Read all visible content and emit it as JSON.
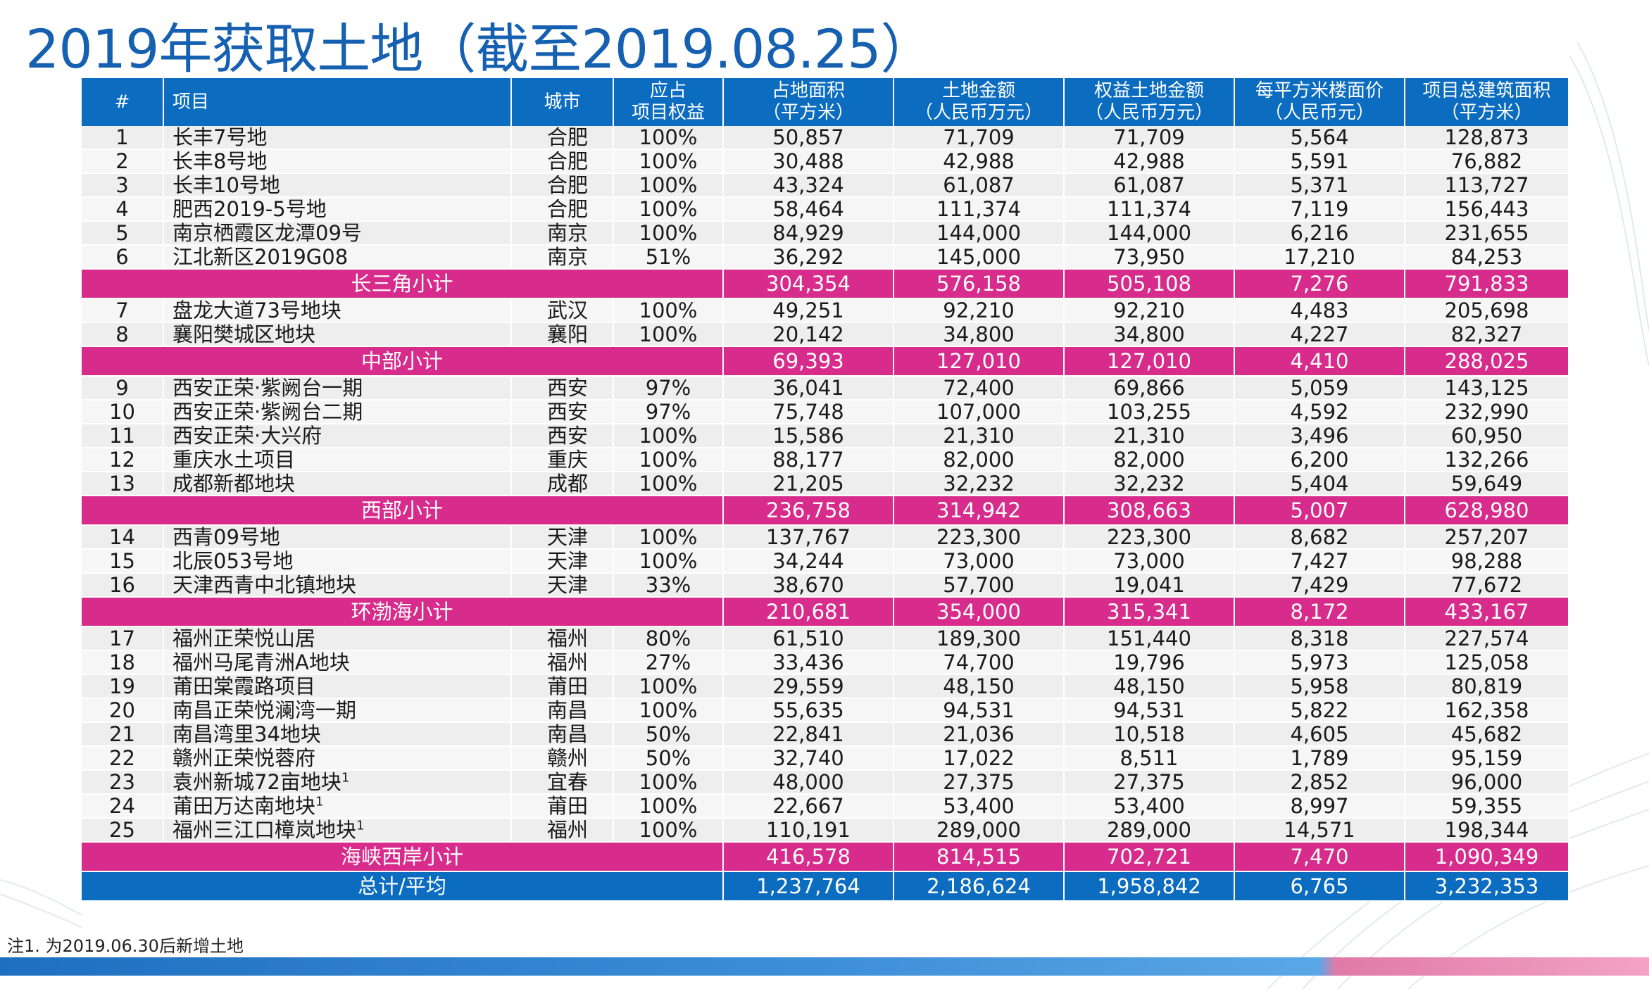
{
  "title": "2019年获取土地（截至2019.08.25）",
  "columns": {
    "num": "#",
    "project": "项目",
    "city": "城市",
    "equity_l1": "应占",
    "equity_l2": "项目权益",
    "area_l1": "占地面积",
    "area_l2": "（平方米）",
    "price_l1": "土地金额",
    "price_l2": "（人民币万元）",
    "eq_price_l1": "权益土地金额",
    "eq_price_l2": "（人民币万元）",
    "unit_l1": "每平方米楼面价",
    "unit_l2": "（人民币元）",
    "gfa_l1": "项目总建筑面积",
    "gfa_l2": "（平方米）"
  },
  "groups": [
    {
      "rows": [
        {
          "n": "1",
          "name": "长丰7号地",
          "sup": "",
          "city": "合肥",
          "eq": "100%",
          "area": "50,857",
          "price": "71,709",
          "eqp": "71,709",
          "unit": "5,564",
          "gfa": "128,873"
        },
        {
          "n": "2",
          "name": "长丰8号地",
          "sup": "",
          "city": "合肥",
          "eq": "100%",
          "area": "30,488",
          "price": "42,988",
          "eqp": "42,988",
          "unit": "5,591",
          "gfa": "76,882"
        },
        {
          "n": "3",
          "name": "长丰10号地",
          "sup": "",
          "city": "合肥",
          "eq": "100%",
          "area": "43,324",
          "price": "61,087",
          "eqp": "61,087",
          "unit": "5,371",
          "gfa": "113,727"
        },
        {
          "n": "4",
          "name": "肥西2019-5号地",
          "sup": "",
          "city": "合肥",
          "eq": "100%",
          "area": "58,464",
          "price": "111,374",
          "eqp": "111,374",
          "unit": "7,119",
          "gfa": "156,443"
        },
        {
          "n": "5",
          "name": "南京栖霞区龙潭09号",
          "sup": "",
          "city": "南京",
          "eq": "100%",
          "area": "84,929",
          "price": "144,000",
          "eqp": "144,000",
          "unit": "6,216",
          "gfa": "231,655"
        },
        {
          "n": "6",
          "name": "江北新区2019G08",
          "sup": "",
          "city": "南京",
          "eq": "51%",
          "area": "36,292",
          "price": "145,000",
          "eqp": "73,950",
          "unit": "17,210",
          "gfa": "84,253"
        }
      ],
      "subtotal": {
        "label": "长三角小计",
        "area": "304,354",
        "price": "576,158",
        "eqp": "505,108",
        "unit": "7,276",
        "gfa": "791,833"
      }
    },
    {
      "rows": [
        {
          "n": "7",
          "name": "盘龙大道73号地块",
          "sup": "",
          "city": "武汉",
          "eq": "100%",
          "area": "49,251",
          "price": "92,210",
          "eqp": "92,210",
          "unit": "4,483",
          "gfa": "205,698"
        },
        {
          "n": "8",
          "name": "襄阳樊城区地块",
          "sup": "",
          "city": "襄阳",
          "eq": "100%",
          "area": "20,142",
          "price": "34,800",
          "eqp": "34,800",
          "unit": "4,227",
          "gfa": "82,327"
        }
      ],
      "subtotal": {
        "label": "中部小计",
        "area": "69,393",
        "price": "127,010",
        "eqp": "127,010",
        "unit": "4,410",
        "gfa": "288,025"
      }
    },
    {
      "rows": [
        {
          "n": "9",
          "name": "西安正荣·紫阙台一期",
          "sup": "",
          "city": "西安",
          "eq": "97%",
          "area": "36,041",
          "price": "72,400",
          "eqp": "69,866",
          "unit": "5,059",
          "gfa": "143,125"
        },
        {
          "n": "10",
          "name": "西安正荣·紫阙台二期",
          "sup": "",
          "city": "西安",
          "eq": "97%",
          "area": "75,748",
          "price": "107,000",
          "eqp": "103,255",
          "unit": "4,592",
          "gfa": "232,990"
        },
        {
          "n": "11",
          "name": "西安正荣·大兴府",
          "sup": "",
          "city": "西安",
          "eq": "100%",
          "area": "15,586",
          "price": "21,310",
          "eqp": "21,310",
          "unit": "3,496",
          "gfa": "60,950"
        },
        {
          "n": "12",
          "name": "重庆水土项目",
          "sup": "",
          "city": "重庆",
          "eq": "100%",
          "area": "88,177",
          "price": "82,000",
          "eqp": "82,000",
          "unit": "6,200",
          "gfa": "132,266"
        },
        {
          "n": "13",
          "name": "成都新都地块",
          "sup": "",
          "city": "成都",
          "eq": "100%",
          "area": "21,205",
          "price": "32,232",
          "eqp": "32,232",
          "unit": "5,404",
          "gfa": "59,649"
        }
      ],
      "subtotal": {
        "label": "西部小计",
        "area": "236,758",
        "price": "314,942",
        "eqp": "308,663",
        "unit": "5,007",
        "gfa": "628,980"
      }
    },
    {
      "rows": [
        {
          "n": "14",
          "name": "西青09号地",
          "sup": "",
          "city": "天津",
          "eq": "100%",
          "area": "137,767",
          "price": "223,300",
          "eqp": "223,300",
          "unit": "8,682",
          "gfa": "257,207"
        },
        {
          "n": "15",
          "name": "北辰053号地",
          "sup": "",
          "city": "天津",
          "eq": "100%",
          "area": "34,244",
          "price": "73,000",
          "eqp": "73,000",
          "unit": "7,427",
          "gfa": "98,288"
        },
        {
          "n": "16",
          "name": "天津西青中北镇地块",
          "sup": "",
          "city": "天津",
          "eq": "33%",
          "area": "38,670",
          "price": "57,700",
          "eqp": "19,041",
          "unit": "7,429",
          "gfa": "77,672"
        }
      ],
      "subtotal": {
        "label": "环渤海小计",
        "area": "210,681",
        "price": "354,000",
        "eqp": "315,341",
        "unit": "8,172",
        "gfa": "433,167"
      }
    },
    {
      "rows": [
        {
          "n": "17",
          "name": "福州正荣悦山居",
          "sup": "",
          "city": "福州",
          "eq": "80%",
          "area": "61,510",
          "price": "189,300",
          "eqp": "151,440",
          "unit": "8,318",
          "gfa": "227,574"
        },
        {
          "n": "18",
          "name": "福州马尾青洲A地块",
          "sup": "",
          "city": "福州",
          "eq": "27%",
          "area": "33,436",
          "price": "74,700",
          "eqp": "19,796",
          "unit": "5,973",
          "gfa": "125,058"
        },
        {
          "n": "19",
          "name": "莆田棠霞路项目",
          "sup": "",
          "city": "莆田",
          "eq": "100%",
          "area": "29,559",
          "price": "48,150",
          "eqp": "48,150",
          "unit": "5,958",
          "gfa": "80,819"
        },
        {
          "n": "20",
          "name": "南昌正荣悦澜湾一期",
          "sup": "",
          "city": "南昌",
          "eq": "100%",
          "area": "55,635",
          "price": "94,531",
          "eqp": "94,531",
          "unit": "5,822",
          "gfa": "162,358"
        },
        {
          "n": "21",
          "name": "南昌湾里34地块",
          "sup": "",
          "city": "南昌",
          "eq": "50%",
          "area": "22,841",
          "price": "21,036",
          "eqp": "10,518",
          "unit": "4,605",
          "gfa": "45,682"
        },
        {
          "n": "22",
          "name": "赣州正荣悦蓉府",
          "sup": "",
          "city": "赣州",
          "eq": "50%",
          "area": "32,740",
          "price": "17,022",
          "eqp": "8,511",
          "unit": "1,789",
          "gfa": "95,159"
        },
        {
          "n": "23",
          "name": "袁州新城72亩地块",
          "sup": "1",
          "city": "宜春",
          "eq": "100%",
          "area": "48,000",
          "price": "27,375",
          "eqp": "27,375",
          "unit": "2,852",
          "gfa": "96,000"
        },
        {
          "n": "24",
          "name": "莆田万达南地块",
          "sup": "1",
          "city": "莆田",
          "eq": "100%",
          "area": "22,667",
          "price": "53,400",
          "eqp": "53,400",
          "unit": "8,997",
          "gfa": "59,355"
        },
        {
          "n": "25",
          "name": "福州三江口樟岚地块",
          "sup": "1",
          "city": "福州",
          "eq": "100%",
          "area": "110,191",
          "price": "289,000",
          "eqp": "289,000",
          "unit": "14,571",
          "gfa": "198,344"
        }
      ],
      "subtotal": {
        "label": "海峡西岸小计",
        "area": "416,578",
        "price": "814,515",
        "eqp": "702,721",
        "unit": "7,470",
        "gfa": "1,090,349"
      }
    }
  ],
  "total": {
    "label": "总计/平均",
    "area": "1,237,764",
    "price": "2,186,624",
    "eqp": "1,958,842",
    "unit": "6,765",
    "gfa": "3,232,353"
  },
  "footnote": "注1. 为2019.06.30后新增土地",
  "colors": {
    "header": "#0b6cc0",
    "subtotal": "#d72c8b",
    "title": "#1560b0"
  }
}
